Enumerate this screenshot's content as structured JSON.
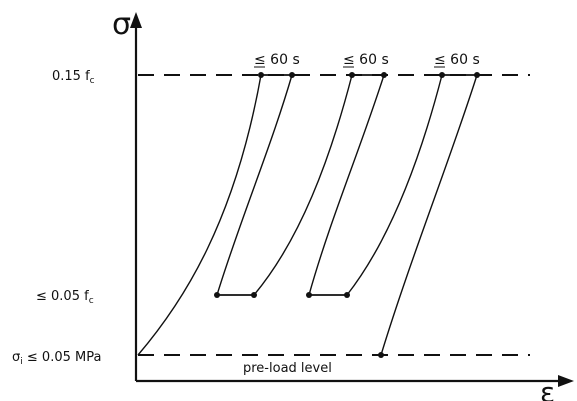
{
  "axes": {
    "y_label": "σ",
    "x_label": "ε"
  },
  "levels": {
    "upper": {
      "prefix": "0.15 f",
      "sub": "c"
    },
    "lower": {
      "prefix": "≤ 0.05 f",
      "sub": "c"
    },
    "preload": {
      "prefix": "σ",
      "sub": "i",
      "suffix": " ≤ 0.05 MPa"
    }
  },
  "hold_label": "≤ 60 s",
  "preload_text": "pre-load level"
}
